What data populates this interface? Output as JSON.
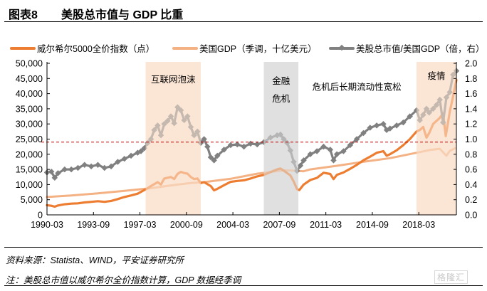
{
  "header": {
    "figure_number": "图表8",
    "title": "美股总市值与 GDP 比重"
  },
  "footer": {
    "source": "资料来源：Statista、WIND，平安证券研究所",
    "note": "注：美股总市值以威尔希尔全价指数计算，GDP 数据经季调",
    "watermark": "格隆汇"
  },
  "colors": {
    "wilshire": "#ED7D31",
    "gdp": "#F4B183",
    "ratio": "#808080",
    "bubble_shade": "#FBE5D6",
    "crisis_shade": "#E0E0E0",
    "reference_line": "#C00000"
  },
  "chart_data": {
    "type": "line",
    "title": "美股总市值与 GDP 比重",
    "xlabel": "",
    "ylabel_left": "",
    "ylabel_right": "",
    "x_range": [
      1990.17,
      2021.0
    ],
    "ylim_left": [
      0,
      50000
    ],
    "ylim_right": [
      0,
      2.0
    ],
    "left_ticks": [
      "0",
      "5,000",
      "10,000",
      "15,000",
      "20,000",
      "25,000",
      "30,000",
      "35,000",
      "40,000",
      "45,000",
      "50,000"
    ],
    "right_ticks": [
      "0.0",
      "0.2",
      "0.4",
      "0.6",
      "0.8",
      "1.0",
      "1.2",
      "1.4",
      "1.6",
      "1.8",
      "2.0"
    ],
    "x_ticks": [
      {
        "label": "1990-03",
        "value": 1990.17
      },
      {
        "label": "1993-09",
        "value": 1993.67
      },
      {
        "label": "1997-03",
        "value": 1997.17
      },
      {
        "label": "2000-09",
        "value": 2000.67
      },
      {
        "label": "2004-03",
        "value": 2004.17
      },
      {
        "label": "2007-09",
        "value": 2007.67
      },
      {
        "label": "2011-03",
        "value": 2011.17
      },
      {
        "label": "2014-09",
        "value": 2014.67
      },
      {
        "label": "2018-03",
        "value": 2018.17
      }
    ],
    "legend": [
      {
        "name": "威尔希尔5000全价指数（点）",
        "axis": "left",
        "key": "wilshire"
      },
      {
        "name": "美国GDP（季调，十亿美元）",
        "axis": "left",
        "key": "gdp"
      },
      {
        "name": "美股总市值/美国GDP（倍，右）",
        "axis": "right",
        "key": "ratio"
      }
    ],
    "legend_position": "top",
    "reference_line": {
      "axis": "right",
      "value": 0.96
    },
    "shaded_periods": [
      {
        "label": "互联网泡沫",
        "start": 1997.6,
        "end": 2001.75,
        "style": "bubble"
      },
      {
        "label": "金融危机",
        "start": 2006.5,
        "end": 2009.1,
        "style": "crisis"
      },
      {
        "label": "疫情",
        "start": 2018.0,
        "end": 2021.0,
        "style": "bubble"
      }
    ],
    "annotations": [
      {
        "text": "危机后长期流动性宽松",
        "x": 2013.5,
        "y_right": 1.65
      }
    ],
    "series": [
      {
        "name": "威尔希尔5000全价指数（点）",
        "axis": "left",
        "x": [
          1990.17,
          1990.5,
          1990.75,
          1991.0,
          1991.5,
          1992.0,
          1992.5,
          1993.0,
          1993.5,
          1994.0,
          1994.5,
          1995.0,
          1995.5,
          1996.0,
          1996.5,
          1997.0,
          1997.5,
          1997.75,
          1998.0,
          1998.5,
          1998.75,
          1999.0,
          1999.5,
          1999.75,
          2000.0,
          2000.25,
          2000.5,
          2000.75,
          2001.0,
          2001.25,
          2001.5,
          2001.75,
          2002.0,
          2002.5,
          2002.75,
          2003.0,
          2003.5,
          2004.0,
          2004.5,
          2005.0,
          2005.5,
          2006.0,
          2006.5,
          2007.0,
          2007.5,
          2007.75,
          2008.0,
          2008.5,
          2008.75,
          2009.0,
          2009.17,
          2009.5,
          2010.0,
          2010.5,
          2011.0,
          2011.5,
          2011.75,
          2012.0,
          2012.5,
          2013.0,
          2013.5,
          2014.0,
          2014.5,
          2015.0,
          2015.5,
          2015.75,
          2016.0,
          2016.5,
          2017.0,
          2017.5,
          2018.0,
          2018.25,
          2018.5,
          2018.75,
          2018.95,
          2019.25,
          2019.5,
          2019.75,
          2020.0,
          2020.2,
          2020.5,
          2020.75,
          2021.0
        ],
        "values": [
          3200,
          3000,
          2700,
          3100,
          3500,
          3700,
          3800,
          4100,
          4300,
          4500,
          4300,
          4600,
          5200,
          5900,
          6400,
          7000,
          8200,
          8800,
          9500,
          10800,
          10000,
          12000,
          12500,
          11800,
          13500,
          14200,
          13800,
          13600,
          12500,
          11800,
          12000,
          10500,
          10800,
          9500,
          8100,
          8600,
          9800,
          10900,
          11200,
          11400,
          12000,
          12700,
          13200,
          14100,
          15000,
          15300,
          14600,
          13000,
          11000,
          8500,
          8200,
          10000,
          11500,
          12200,
          13900,
          13500,
          11800,
          13200,
          14000,
          15200,
          16500,
          18000,
          19200,
          20500,
          21000,
          19500,
          20000,
          21300,
          23000,
          25000,
          27500,
          28000,
          29000,
          25500,
          27000,
          30000,
          31000,
          32000,
          33500,
          26000,
          34000,
          39000,
          44500
        ]
      },
      {
        "name": "美国GDP（季调，十亿美元）",
        "axis": "left",
        "x": [
          1990.17,
          1992.0,
          1994.0,
          1996.0,
          1998.0,
          2000.0,
          2001.0,
          2002.0,
          2004.0,
          2006.0,
          2008.0,
          2008.75,
          2009.5,
          2010.0,
          2012.0,
          2014.0,
          2016.0,
          2018.0,
          2019.0,
          2019.75,
          2020.25,
          2020.5,
          2020.9
        ],
        "values": [
          5900,
          6400,
          7100,
          7900,
          8800,
          10000,
          10500,
          10800,
          11900,
          13600,
          14700,
          14600,
          14400,
          15000,
          16200,
          17500,
          18700,
          20500,
          21400,
          21800,
          19500,
          21100,
          22000
        ]
      },
      {
        "name": "美股总市值/美国GDP（倍，右）",
        "axis": "right",
        "x": [
          1990.17,
          1990.5,
          1990.75,
          1991.0,
          1991.5,
          1992.0,
          1992.5,
          1993.0,
          1993.5,
          1994.0,
          1994.5,
          1995.0,
          1995.5,
          1996.0,
          1996.5,
          1997.0,
          1997.25,
          1997.5,
          1997.75,
          1998.0,
          1998.25,
          1998.5,
          1998.75,
          1999.0,
          1999.25,
          1999.5,
          1999.75,
          2000.0,
          2000.25,
          2000.5,
          2000.75,
          2001.0,
          2001.25,
          2001.5,
          2001.75,
          2002.0,
          2002.25,
          2002.5,
          2002.75,
          2003.0,
          2003.5,
          2004.0,
          2004.5,
          2005.0,
          2005.5,
          2006.0,
          2006.5,
          2007.0,
          2007.5,
          2007.75,
          2008.0,
          2008.25,
          2008.5,
          2008.75,
          2009.0,
          2009.25,
          2009.5,
          2010.0,
          2010.5,
          2011.0,
          2011.5,
          2011.75,
          2012.0,
          2012.5,
          2013.0,
          2013.5,
          2014.0,
          2014.5,
          2015.0,
          2015.5,
          2015.75,
          2016.0,
          2016.5,
          2017.0,
          2017.5,
          2018.0,
          2018.25,
          2018.5,
          2018.75,
          2018.95,
          2019.25,
          2019.5,
          2019.75,
          2020.0,
          2020.25,
          2020.5,
          2020.75,
          2021.0
        ],
        "values": [
          0.56,
          0.57,
          0.49,
          0.55,
          0.6,
          0.6,
          0.62,
          0.66,
          0.64,
          0.66,
          0.62,
          0.64,
          0.7,
          0.74,
          0.78,
          0.82,
          0.84,
          0.88,
          0.95,
          1.0,
          1.12,
          1.18,
          1.05,
          1.2,
          1.24,
          1.3,
          1.21,
          1.42,
          1.38,
          1.25,
          1.3,
          1.16,
          1.05,
          1.1,
          0.95,
          1.0,
          0.9,
          0.76,
          0.72,
          0.78,
          0.86,
          0.92,
          0.93,
          0.9,
          0.94,
          0.93,
          0.96,
          1.02,
          1.05,
          1.06,
          1.0,
          0.95,
          0.85,
          0.7,
          0.58,
          0.65,
          0.72,
          0.8,
          0.84,
          0.9,
          0.86,
          0.72,
          0.8,
          0.84,
          0.92,
          1.0,
          1.08,
          1.15,
          1.18,
          1.2,
          1.12,
          1.14,
          1.18,
          1.22,
          1.3,
          1.38,
          1.25,
          1.32,
          1.4,
          1.35,
          1.4,
          1.45,
          1.52,
          1.22,
          1.55,
          1.62,
          1.85,
          1.9
        ]
      }
    ]
  }
}
